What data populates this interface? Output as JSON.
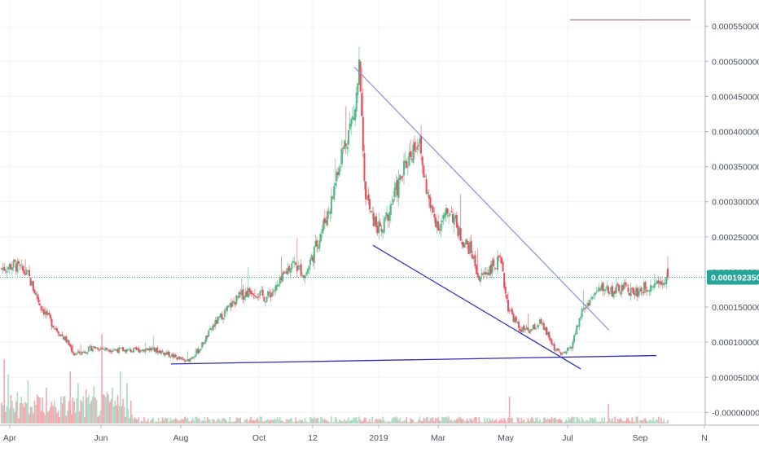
{
  "chart_data": {
    "type": "candlestick",
    "x_ticks": [
      "Apr",
      "Jun",
      "Aug",
      "Oct",
      "12",
      "2019",
      "Mar",
      "May",
      "Jul",
      "Sep",
      "N"
    ],
    "y_ticks": [
      "0.000550000",
      "0.000500000",
      "0.000450000",
      "0.000400000",
      "0.000350000",
      "0.000300000",
      "0.000250000",
      "0.000200000",
      "0.000150000",
      "0.000100000",
      "0.000050000",
      "-0.000000000"
    ],
    "ylim": [
      -1e-05,
      0.000585
    ],
    "last_price": {
      "value": 0.00019235,
      "label": "0.000192350"
    },
    "colors": {
      "up": "#53b987",
      "down": "#eb4d5c",
      "vol_up": "#a9dcc3",
      "vol_down": "#f5a6ae",
      "wedge_line": "#8c8fe0",
      "support_line": "#2d2db8",
      "price_line": "#26a69a",
      "label_bg": "#26a69a"
    },
    "drawings": [
      {
        "name": "wedge-upper-trendline",
        "from": {
          "x": "Dec 2018",
          "y": 0.000492
        },
        "to": {
          "x": "Aug 2019",
          "y": 0.000117
        }
      },
      {
        "name": "wedge-lower-trendline",
        "from": {
          "x": "Dec 2018",
          "y": 0.000238
        },
        "to": {
          "x": "Jul 2019",
          "y": 6.2e-05
        }
      },
      {
        "name": "horizontal-support-line",
        "from": {
          "x": "Jul 2018",
          "y": 6.9e-05
        },
        "to": {
          "x": "Sep 2019",
          "y": 8.1e-05
        }
      },
      {
        "name": "top-marker-line",
        "from": {
          "x": "Aug 2019",
          "y": 0.000559
        },
        "to": {
          "x": "Oct 2019",
          "y": 0.000559
        }
      }
    ],
    "anchors": [
      [
        0,
        0.000205
      ],
      [
        10,
        0.00021
      ],
      [
        20,
        0.000195
      ],
      [
        30,
        0.00015
      ],
      [
        40,
        0.000122
      ],
      [
        50,
        0.0001
      ],
      [
        55,
        8.3e-05
      ],
      [
        60,
        8.5e-05
      ],
      [
        70,
        9.3e-05
      ],
      [
        80,
        9e-05
      ],
      [
        90,
        8.9e-05
      ],
      [
        100,
        8.8e-05
      ],
      [
        110,
        9.1e-05
      ],
      [
        120,
        8.7e-05
      ],
      [
        130,
        8e-05
      ],
      [
        140,
        7.2e-05
      ],
      [
        150,
        9e-05
      ],
      [
        160,
        0.000122
      ],
      [
        170,
        0.000145
      ],
      [
        180,
        0.000165
      ],
      [
        190,
        0.000175
      ],
      [
        200,
        0.000163
      ],
      [
        210,
        0.00018
      ],
      [
        220,
        0.000215
      ],
      [
        230,
        0.000195
      ],
      [
        240,
        0.000245
      ],
      [
        250,
        0.0003
      ],
      [
        255,
        0.00035
      ],
      [
        262,
        0.000395
      ],
      [
        268,
        0.00043
      ],
      [
        271,
        0.00049
      ],
      [
        275,
        0.00032
      ],
      [
        280,
        0.00028
      ],
      [
        288,
        0.000255
      ],
      [
        296,
        0.0003
      ],
      [
        304,
        0.00034
      ],
      [
        310,
        0.00037
      ],
      [
        316,
        0.00039
      ],
      [
        320,
        0.00034
      ],
      [
        325,
        0.00029
      ],
      [
        332,
        0.000265
      ],
      [
        340,
        0.00029
      ],
      [
        348,
        0.00025
      ],
      [
        356,
        0.00023
      ],
      [
        362,
        0.00019
      ],
      [
        370,
        0.000205
      ],
      [
        378,
        0.000215
      ],
      [
        384,
        0.00015
      ],
      [
        392,
        0.00012
      ],
      [
        400,
        0.000115
      ],
      [
        408,
        0.000128
      ],
      [
        414,
        0.00011
      ],
      [
        420,
        8.8e-05
      ],
      [
        426,
        8.2e-05
      ],
      [
        432,
        9.5e-05
      ],
      [
        440,
        0.000145
      ],
      [
        448,
        0.000165
      ],
      [
        456,
        0.000178
      ],
      [
        464,
        0.000172
      ],
      [
        472,
        0.000178
      ],
      [
        480,
        0.00017
      ],
      [
        488,
        0.000178
      ],
      [
        495,
        0.000185
      ],
      [
        500,
        0.000188
      ],
      [
        505,
        0.000192
      ]
    ],
    "volume_spikes": [
      [
        2,
        0.72
      ],
      [
        5,
        0.55
      ],
      [
        12,
        0.35
      ],
      [
        20,
        0.48
      ],
      [
        28,
        0.3
      ],
      [
        34,
        0.4
      ],
      [
        52,
        0.58
      ],
      [
        58,
        0.45
      ],
      [
        64,
        0.38
      ],
      [
        70,
        0.42
      ],
      [
        76,
        1.0
      ],
      [
        80,
        0.35
      ],
      [
        84,
        0.4
      ],
      [
        90,
        0.58
      ],
      [
        95,
        0.45
      ],
      [
        385,
        0.3
      ],
      [
        460,
        0.22
      ]
    ]
  }
}
